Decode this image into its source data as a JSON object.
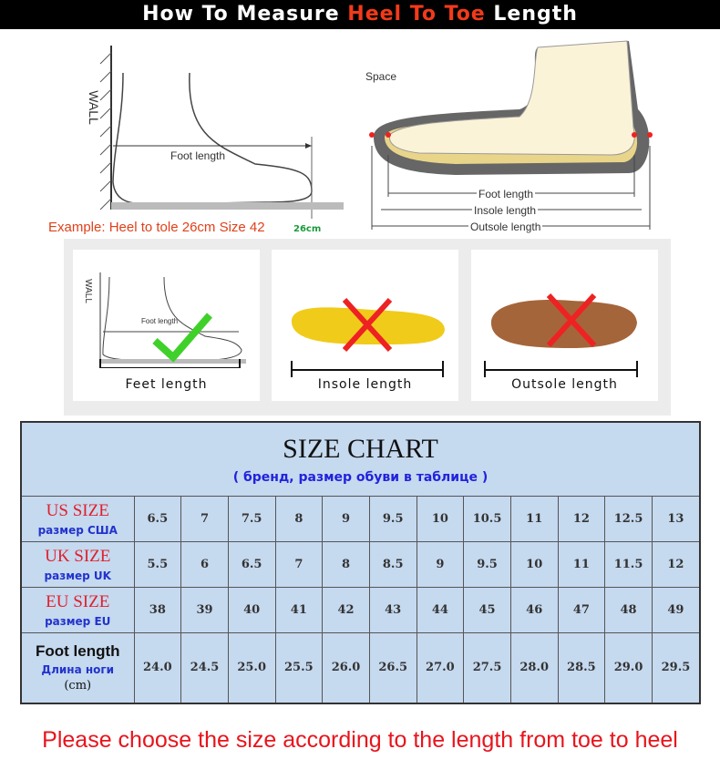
{
  "header": {
    "title_pre": "How To Measure ",
    "title_highlight": "Heel To Toe",
    "title_post": " Length"
  },
  "diagram_left": {
    "wall": "WALL",
    "foot_length": "Foot length",
    "example": "Example: Heel to tole 26cm Size 42",
    "measure": "26cm"
  },
  "diagram_right": {
    "space": "Space",
    "foot_length": "Foot length",
    "insole_length": "Insole length",
    "outsole_length": "Outsole length"
  },
  "cards": [
    {
      "caption": "Feet length",
      "mark": "check",
      "wall": "WALL",
      "foot_length": "Foot length"
    },
    {
      "caption": "Insole length",
      "mark": "cross"
    },
    {
      "caption": "Outsole length",
      "mark": "cross"
    }
  ],
  "table": {
    "title": "SIZE CHART",
    "subtitle": "( бренд,  размер обуви в таблице )",
    "rows": [
      {
        "label": "US SIZE",
        "sub": "размер США",
        "values": [
          "6.5",
          "7",
          "7.5",
          "8",
          "9",
          "9.5",
          "10",
          "10.5",
          "11",
          "12",
          "12.5",
          "13"
        ]
      },
      {
        "label": "UK SIZE",
        "sub": "размер UK",
        "values": [
          "5.5",
          "6",
          "6.5",
          "7",
          "8",
          "8.5",
          "9",
          "9.5",
          "10",
          "11",
          "11.5",
          "12"
        ]
      },
      {
        "label": "EU SIZE",
        "sub": "размер EU",
        "values": [
          "38",
          "39",
          "40",
          "41",
          "42",
          "43",
          "44",
          "45",
          "46",
          "47",
          "48",
          "49"
        ]
      },
      {
        "label": "Foot length",
        "sub": "Длина ноги",
        "unit": "(cm)",
        "values": [
          "24.0",
          "24.5",
          "25.0",
          "25.5",
          "26.0",
          "26.5",
          "27.0",
          "27.5",
          "28.0",
          "28.5",
          "29.0",
          "29.5"
        ]
      }
    ]
  },
  "footer": "Please choose the size according to the length from toe to heel"
}
